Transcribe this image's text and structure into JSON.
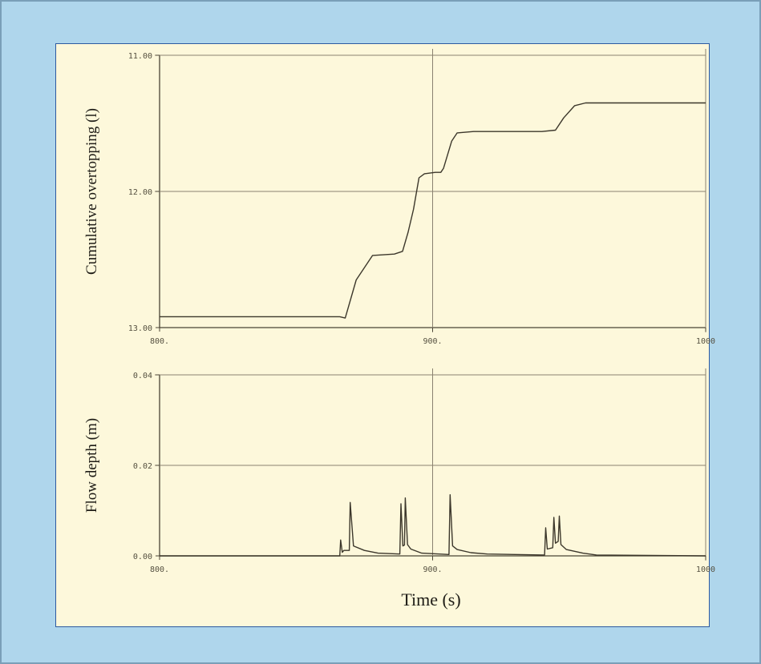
{
  "colors": {
    "background": "#afd6ec",
    "paper": "#fdf8db",
    "ink": "#4a4435",
    "gridline": "#8a8270",
    "border": "#2d5aa0"
  },
  "chart_data": [
    {
      "type": "line",
      "ylabel": "Cumulative overtopping (l)",
      "xlabel": "",
      "xlim": [
        800,
        1000
      ],
      "ylim": [
        13.0,
        11.0
      ],
      "y_axis_inverted": true,
      "grid": true,
      "x_ticks": [
        {
          "value": 800,
          "label": "800."
        },
        {
          "value": 900,
          "label": "900."
        },
        {
          "value": 1000,
          "label": "1000"
        }
      ],
      "y_ticks": [
        {
          "value": 11.0,
          "label": "11.00"
        },
        {
          "value": 12.0,
          "label": "12.00"
        },
        {
          "value": 13.0,
          "label": "13.00"
        }
      ],
      "series": [
        {
          "x": [
            800,
            866,
            868,
            872,
            878,
            886,
            889,
            891,
            893,
            895,
            897,
            901,
            903,
            904,
            907,
            909,
            915,
            940,
            945,
            948,
            952,
            956,
            962,
            1000
          ],
          "y": [
            12.92,
            12.92,
            12.93,
            12.65,
            12.47,
            12.46,
            12.44,
            12.3,
            12.13,
            11.9,
            11.87,
            11.86,
            11.86,
            11.83,
            11.63,
            11.57,
            11.56,
            11.56,
            11.55,
            11.46,
            11.37,
            11.35,
            11.35,
            11.35
          ]
        }
      ]
    },
    {
      "type": "line",
      "ylabel": "Flow depth (m)",
      "xlabel": "Time (s)",
      "xlim": [
        800,
        1000
      ],
      "ylim": [
        0.0,
        0.04
      ],
      "grid": true,
      "x_ticks": [
        {
          "value": 800,
          "label": "800."
        },
        {
          "value": 900,
          "label": "900."
        },
        {
          "value": 1000,
          "label": "1000"
        }
      ],
      "y_ticks": [
        {
          "value": 0.0,
          "label": "0.00"
        },
        {
          "value": 0.02,
          "label": "0.02"
        },
        {
          "value": 0.04,
          "label": "0.04"
        }
      ],
      "series": [
        {
          "x": [
            800,
            866,
            866.3,
            866.9,
            867.5,
            869.5,
            869.8,
            871,
            875,
            880,
            888,
            888.4,
            889.1,
            889.7,
            890,
            890.8,
            892,
            896,
            906,
            906.4,
            907.3,
            909,
            914,
            920,
            941,
            941.4,
            942,
            944,
            944.4,
            945,
            946,
            946.4,
            947,
            949,
            955,
            960,
            1000
          ],
          "y": [
            0.0,
            0.0,
            0.0035,
            0.0008,
            0.0012,
            0.0012,
            0.0118,
            0.0022,
            0.0012,
            0.0006,
            0.0004,
            0.0115,
            0.0022,
            0.0024,
            0.0128,
            0.0025,
            0.0015,
            0.0006,
            0.0003,
            0.0135,
            0.0022,
            0.0014,
            0.0007,
            0.0004,
            0.0002,
            0.0062,
            0.0015,
            0.0018,
            0.0085,
            0.0028,
            0.0032,
            0.0088,
            0.0025,
            0.0014,
            0.0006,
            0.0002,
            0.0
          ]
        }
      ]
    }
  ]
}
